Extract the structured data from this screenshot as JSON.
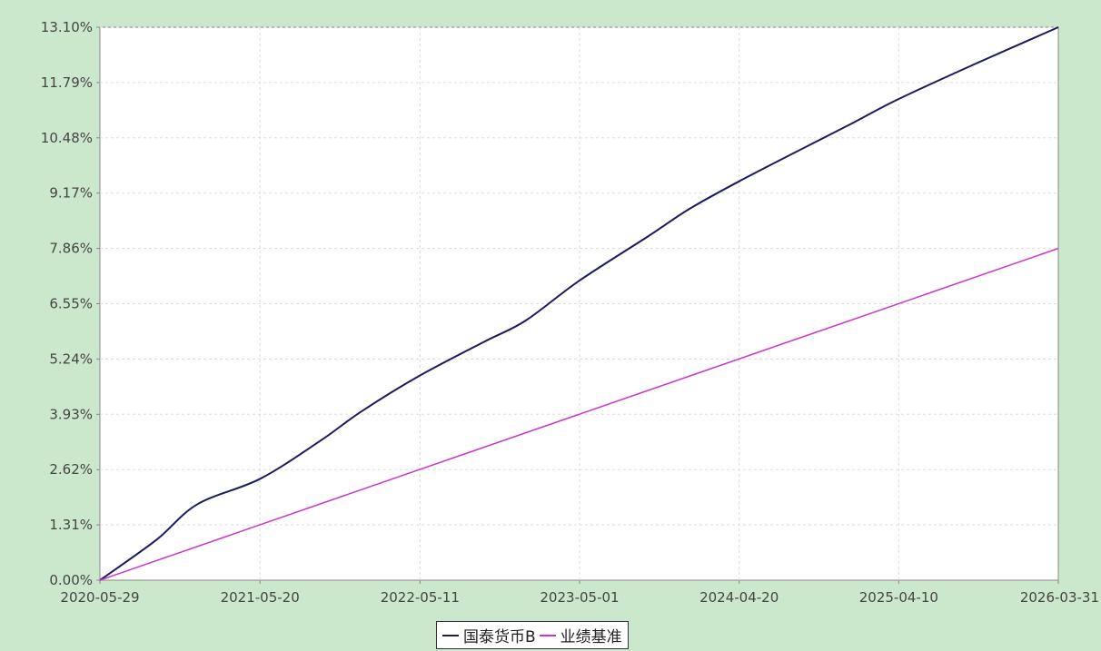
{
  "chart_data": {
    "type": "line",
    "title": "",
    "xlabel": "",
    "ylabel": "",
    "x_ticks": [
      "2020-05-29",
      "2021-05-20",
      "2022-05-11",
      "2023-05-01",
      "2024-04-20",
      "2025-04-10",
      "2026-03-31"
    ],
    "y_ticks": [
      "0.00%",
      "1.31%",
      "2.62%",
      "3.93%",
      "5.24%",
      "6.55%",
      "7.86%",
      "9.17%",
      "10.48%",
      "11.79%",
      "13.10%"
    ],
    "ylim": [
      0,
      13.1
    ],
    "xlim": [
      "2020-05-29",
      "2026-03-31"
    ],
    "grid": true,
    "legend_position": "bottom",
    "series": [
      {
        "name": "国泰货币B",
        "color": "#1a1a5e",
        "x": [
          "2020-05-29",
          "2020-10-01",
          "2021-01-01",
          "2021-05-20",
          "2021-10-01",
          "2022-01-01",
          "2022-05-11",
          "2022-10-01",
          "2023-01-01",
          "2023-05-01",
          "2023-10-01",
          "2024-01-01",
          "2024-04-20",
          "2024-10-01",
          "2025-01-01",
          "2025-04-10",
          "2025-10-01",
          "2026-03-31"
        ],
        "y": [
          0.0,
          0.95,
          1.8,
          2.4,
          3.3,
          4.0,
          4.85,
          5.65,
          6.15,
          7.1,
          8.15,
          8.8,
          9.45,
          10.35,
          10.85,
          11.4,
          12.25,
          13.1
        ]
      },
      {
        "name": "业绩基准",
        "color": "#cc33cc",
        "x": [
          "2020-05-29",
          "2026-03-31"
        ],
        "y": [
          0.0,
          7.86
        ]
      }
    ]
  },
  "legend": {
    "items": [
      {
        "label": "国泰货币B",
        "color": "#1a1a5e"
      },
      {
        "label": "业绩基准",
        "color": "#cc33cc"
      }
    ]
  }
}
